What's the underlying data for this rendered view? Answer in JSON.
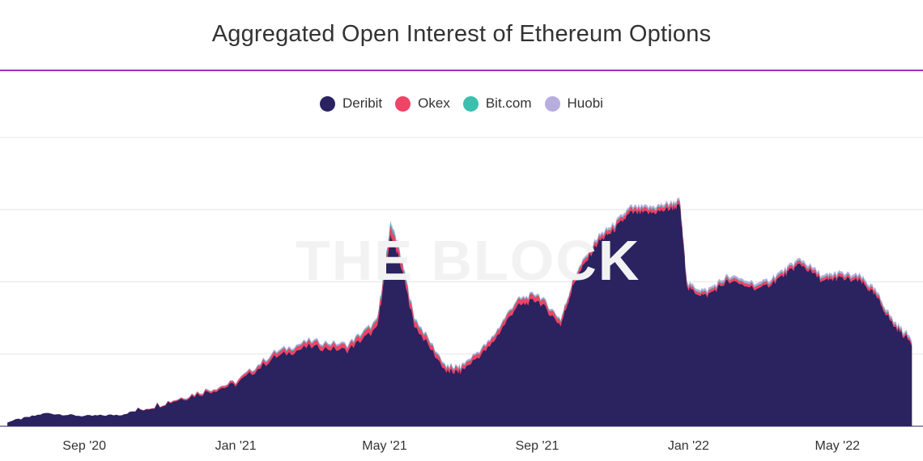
{
  "chart_data": {
    "type": "area",
    "title": "Aggregated Open Interest of Ethereum Options",
    "xlabel": "",
    "ylabel": "",
    "stacked": true,
    "grid": true,
    "legend_position": "top-center",
    "x_ticks": [
      "Sep '20",
      "Jan '21",
      "May '21",
      "Sep '21",
      "Jan '22",
      "May '22"
    ],
    "x": [
      "2020-07-01",
      "2020-08-01",
      "2020-09-01",
      "2020-10-01",
      "2020-11-01",
      "2020-12-01",
      "2021-01-01",
      "2021-02-01",
      "2021-03-01",
      "2021-04-01",
      "2021-04-25",
      "2021-05-06",
      "2021-05-13",
      "2021-05-25",
      "2021-06-20",
      "2021-07-01",
      "2021-07-25",
      "2021-08-15",
      "2021-09-01",
      "2021-09-20",
      "2021-10-01",
      "2021-10-20",
      "2021-11-01",
      "2021-11-15",
      "2021-12-01",
      "2021-12-15",
      "2021-12-25",
      "2021-12-31",
      "2022-01-15",
      "2022-02-01",
      "2022-03-01",
      "2022-03-20",
      "2022-04-01",
      "2022-04-20",
      "2022-05-01",
      "2022-05-20",
      "2022-06-01",
      "2022-06-15",
      "2022-06-30"
    ],
    "series": [
      {
        "name": "Deribit",
        "color": "#2b2260",
        "values": [
          0.06,
          0.18,
          0.14,
          0.16,
          0.3,
          0.44,
          0.58,
          0.95,
          1.1,
          1.05,
          1.35,
          2.65,
          2.3,
          1.4,
          0.75,
          0.75,
          1.1,
          1.65,
          1.75,
          1.4,
          2.0,
          2.55,
          2.7,
          2.95,
          2.95,
          3.0,
          3.05,
          1.9,
          1.8,
          2.0,
          1.9,
          2.1,
          2.25,
          2.0,
          2.05,
          2.0,
          1.8,
          1.4,
          1.15
        ]
      },
      {
        "name": "Okex",
        "color": "#ee4466",
        "values": [
          0.0,
          0.0,
          0.0,
          0.0,
          0.01,
          0.02,
          0.03,
          0.05,
          0.06,
          0.06,
          0.08,
          0.12,
          0.1,
          0.08,
          0.05,
          0.05,
          0.06,
          0.07,
          0.07,
          0.06,
          0.06,
          0.05,
          0.05,
          0.05,
          0.05,
          0.05,
          0.05,
          0.04,
          0.04,
          0.04,
          0.04,
          0.04,
          0.04,
          0.04,
          0.04,
          0.04,
          0.04,
          0.03,
          0.03
        ]
      },
      {
        "name": "Bit.com",
        "color": "#3bbfae",
        "values": [
          0.0,
          0.0,
          0.0,
          0.0,
          0.0,
          0.0,
          0.0,
          0.01,
          0.01,
          0.01,
          0.02,
          0.05,
          0.03,
          0.02,
          0.01,
          0.01,
          0.01,
          0.01,
          0.01,
          0.01,
          0.01,
          0.01,
          0.01,
          0.01,
          0.01,
          0.01,
          0.01,
          0.01,
          0.01,
          0.01,
          0.01,
          0.01,
          0.01,
          0.01,
          0.01,
          0.01,
          0.01,
          0.01,
          0.01
        ]
      },
      {
        "name": "Huobi",
        "color": "#b7addf",
        "values": [
          0.0,
          0.0,
          0.0,
          0.0,
          0.0,
          0.01,
          0.01,
          0.02,
          0.02,
          0.02,
          0.02,
          0.03,
          0.03,
          0.02,
          0.02,
          0.02,
          0.02,
          0.02,
          0.02,
          0.02,
          0.02,
          0.03,
          0.03,
          0.03,
          0.03,
          0.03,
          0.03,
          0.03,
          0.03,
          0.03,
          0.03,
          0.03,
          0.03,
          0.03,
          0.03,
          0.03,
          0.03,
          0.03,
          0.03
        ]
      }
    ]
  }
}
